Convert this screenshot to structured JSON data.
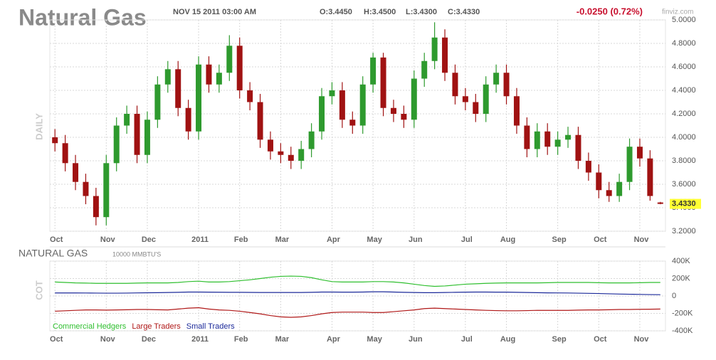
{
  "header": {
    "timestamp": "NOV 15 2011 03:00 AM",
    "open": "O:3.4450",
    "high": "H:3.4500",
    "low": "L:3.4300",
    "close": "C:3.4330",
    "change": "-0.0250 (0.72%)",
    "source": "finviz.com"
  },
  "chart_data": [
    {
      "type": "candlestick",
      "title": "Natural Gas",
      "ylabel": "DAILY",
      "up_color": "#2e9a2e",
      "down_color": "#a01212",
      "grid": true,
      "open": [
        4.0,
        3.95,
        3.78,
        3.62,
        3.5,
        3.32,
        3.78,
        4.1,
        4.2,
        3.85,
        4.15,
        4.45,
        4.58,
        4.25,
        4.05,
        4.62,
        4.45,
        4.55,
        4.78,
        4.4,
        4.3,
        3.98,
        3.88,
        3.85,
        3.8,
        3.9,
        4.05,
        4.35,
        4.4,
        4.15,
        4.1,
        4.45,
        4.68,
        4.25,
        4.2,
        4.15,
        4.5,
        4.65,
        4.85,
        4.55,
        4.35,
        4.3,
        4.2,
        4.45,
        4.55,
        4.35,
        4.1,
        3.9,
        4.05,
        3.92,
        3.98,
        4.02,
        3.8,
        3.7,
        3.55,
        3.5,
        3.62,
        3.92,
        3.82,
        3.445
      ],
      "high": [
        4.07,
        4.02,
        3.85,
        3.69,
        3.57,
        3.85,
        4.17,
        4.27,
        4.27,
        4.22,
        4.52,
        4.65,
        4.65,
        4.32,
        4.69,
        4.69,
        4.62,
        4.87,
        4.85,
        4.47,
        4.37,
        4.05,
        3.95,
        3.92,
        3.97,
        4.12,
        4.42,
        4.47,
        4.47,
        4.22,
        4.52,
        4.72,
        4.72,
        4.32,
        4.27,
        4.57,
        4.72,
        4.98,
        4.92,
        4.62,
        4.42,
        4.37,
        4.52,
        4.62,
        4.62,
        4.42,
        4.17,
        4.12,
        4.12,
        4.05,
        4.09,
        4.09,
        3.87,
        3.77,
        3.62,
        3.69,
        3.99,
        3.99,
        3.89,
        3.45
      ],
      "low": [
        3.88,
        3.71,
        3.55,
        3.43,
        3.25,
        3.25,
        3.71,
        4.03,
        3.78,
        3.78,
        4.08,
        4.38,
        4.18,
        3.98,
        3.98,
        4.38,
        4.38,
        4.48,
        4.33,
        4.23,
        3.91,
        3.81,
        3.78,
        3.73,
        3.73,
        3.83,
        3.98,
        4.28,
        4.08,
        4.03,
        4.03,
        4.38,
        4.18,
        4.13,
        4.08,
        4.08,
        4.43,
        4.58,
        4.48,
        4.28,
        4.23,
        4.13,
        4.13,
        4.38,
        4.28,
        4.03,
        3.83,
        3.83,
        3.85,
        3.85,
        3.91,
        3.73,
        3.63,
        3.48,
        3.45,
        3.45,
        3.55,
        3.75,
        3.46,
        3.43
      ],
      "close": [
        3.95,
        3.78,
        3.62,
        3.5,
        3.32,
        3.78,
        4.1,
        4.2,
        3.85,
        4.15,
        4.45,
        4.58,
        4.25,
        4.05,
        4.62,
        4.45,
        4.55,
        4.78,
        4.4,
        4.3,
        3.98,
        3.88,
        3.85,
        3.8,
        3.9,
        4.05,
        4.35,
        4.4,
        4.15,
        4.1,
        4.45,
        4.68,
        4.25,
        4.2,
        4.15,
        4.5,
        4.65,
        4.85,
        4.55,
        4.35,
        4.3,
        4.2,
        4.45,
        4.55,
        4.35,
        4.1,
        3.9,
        4.05,
        3.92,
        3.98,
        4.02,
        3.8,
        3.7,
        3.55,
        3.5,
        3.62,
        3.92,
        3.82,
        3.5,
        3.433
      ],
      "last_label": "3.4330",
      "ylim": [
        3.2,
        5.0
      ],
      "yticks": [
        {
          "value": 3.2,
          "label": "3.2000"
        },
        {
          "value": 3.4,
          "label": "3.4000"
        },
        {
          "value": 3.6,
          "label": "3.6000"
        },
        {
          "value": 3.8,
          "label": "3.8000"
        },
        {
          "value": 4.0,
          "label": "4.0000"
        },
        {
          "value": 4.2,
          "label": "4.2000"
        },
        {
          "value": 4.4,
          "label": "4.4000"
        },
        {
          "value": 4.6,
          "label": "4.6000"
        },
        {
          "value": 4.8,
          "label": "4.8000"
        },
        {
          "value": 5.0,
          "label": "5.0000"
        }
      ],
      "xticks": [
        {
          "value": 0,
          "label": "Oct"
        },
        {
          "value": 5,
          "label": "Nov"
        },
        {
          "value": 9,
          "label": "Dec"
        },
        {
          "value": 14,
          "label": "2011"
        },
        {
          "value": 18,
          "label": "Feb"
        },
        {
          "value": 22,
          "label": "Mar"
        },
        {
          "value": 27,
          "label": "Apr"
        },
        {
          "value": 31,
          "label": "May"
        },
        {
          "value": 35,
          "label": "Jun"
        },
        {
          "value": 40,
          "label": "Jul"
        },
        {
          "value": 44,
          "label": "Aug"
        },
        {
          "value": 49,
          "label": "Sep"
        },
        {
          "value": 53,
          "label": "Oct"
        },
        {
          "value": 57,
          "label": "Nov"
        }
      ]
    },
    {
      "type": "line",
      "title": "NATURAL GAS",
      "subtitle": "10000 MMBTU'S",
      "ylabel": "COT",
      "grid": true,
      "series": [
        {
          "name": "Commercial Hedgers",
          "color": "#2fbf2f",
          "values": [
            160000,
            155000,
            150000,
            148000,
            145000,
            145000,
            145000,
            145000,
            148000,
            150000,
            150000,
            150000,
            155000,
            165000,
            170000,
            160000,
            160000,
            165000,
            175000,
            185000,
            200000,
            215000,
            225000,
            228000,
            225000,
            210000,
            185000,
            165000,
            160000,
            160000,
            160000,
            165000,
            165000,
            160000,
            150000,
            135000,
            120000,
            110000,
            115000,
            125000,
            135000,
            140000,
            145000,
            148000,
            150000,
            150000,
            150000,
            150000,
            152000,
            155000,
            155000,
            155000,
            155000,
            152000,
            150000,
            150000,
            150000,
            152000,
            155000,
            155000
          ]
        },
        {
          "name": "Large Traders",
          "color": "#b01818",
          "values": [
            -175000,
            -170000,
            -165000,
            -160000,
            -160000,
            -162000,
            -160000,
            -158000,
            -155000,
            -155000,
            -158000,
            -160000,
            -150000,
            -140000,
            -135000,
            -150000,
            -160000,
            -165000,
            -175000,
            -190000,
            -205000,
            -225000,
            -240000,
            -245000,
            -240000,
            -225000,
            -205000,
            -190000,
            -185000,
            -185000,
            -185000,
            -190000,
            -190000,
            -180000,
            -170000,
            -160000,
            -145000,
            -140000,
            -145000,
            -150000,
            -155000,
            -160000,
            -165000,
            -168000,
            -170000,
            -170000,
            -168000,
            -165000,
            -165000,
            -165000,
            -165000,
            -162000,
            -160000,
            -160000,
            -158000,
            -155000,
            -155000,
            -153000,
            -152000,
            -150000
          ]
        },
        {
          "name": "Small Traders",
          "color": "#1c2a9a",
          "values": [
            35000,
            35000,
            35000,
            34000,
            33000,
            32000,
            32000,
            33000,
            35000,
            37000,
            38000,
            40000,
            42000,
            45000,
            45000,
            44000,
            43000,
            42000,
            42000,
            41000,
            40000,
            40000,
            40000,
            40000,
            40000,
            42000,
            45000,
            45000,
            44000,
            44000,
            45000,
            48000,
            48000,
            45000,
            42000,
            40000,
            38000,
            38000,
            40000,
            42000,
            44000,
            45000,
            45000,
            44000,
            44000,
            42000,
            40000,
            38000,
            36000,
            35000,
            34000,
            32000,
            30000,
            28000,
            25000,
            22000,
            20000,
            18000,
            16000,
            15000
          ]
        }
      ],
      "ylim": [
        -400000,
        400000
      ],
      "yticks": [
        {
          "value": -400000,
          "label": "-400K"
        },
        {
          "value": -200000,
          "label": "-200K"
        },
        0,
        {
          "value": 200000,
          "label": "200K"
        },
        {
          "value": 400000,
          "label": "400K"
        }
      ],
      "xticks": [
        {
          "value": 0,
          "label": "Oct"
        },
        {
          "value": 5,
          "label": "Nov"
        },
        {
          "value": 9,
          "label": "Dec"
        },
        {
          "value": 14,
          "label": "2011"
        },
        {
          "value": 18,
          "label": "Feb"
        },
        {
          "value": 22,
          "label": "Mar"
        },
        {
          "value": 27,
          "label": "Apr"
        },
        {
          "value": 31,
          "label": "May"
        },
        {
          "value": 35,
          "label": "Jun"
        },
        {
          "value": 40,
          "label": "Jul"
        },
        {
          "value": 44,
          "label": "Aug"
        },
        {
          "value": 49,
          "label": "Sep"
        },
        {
          "value": 53,
          "label": "Oct"
        },
        {
          "value": 57,
          "label": "Nov"
        }
      ]
    }
  ]
}
